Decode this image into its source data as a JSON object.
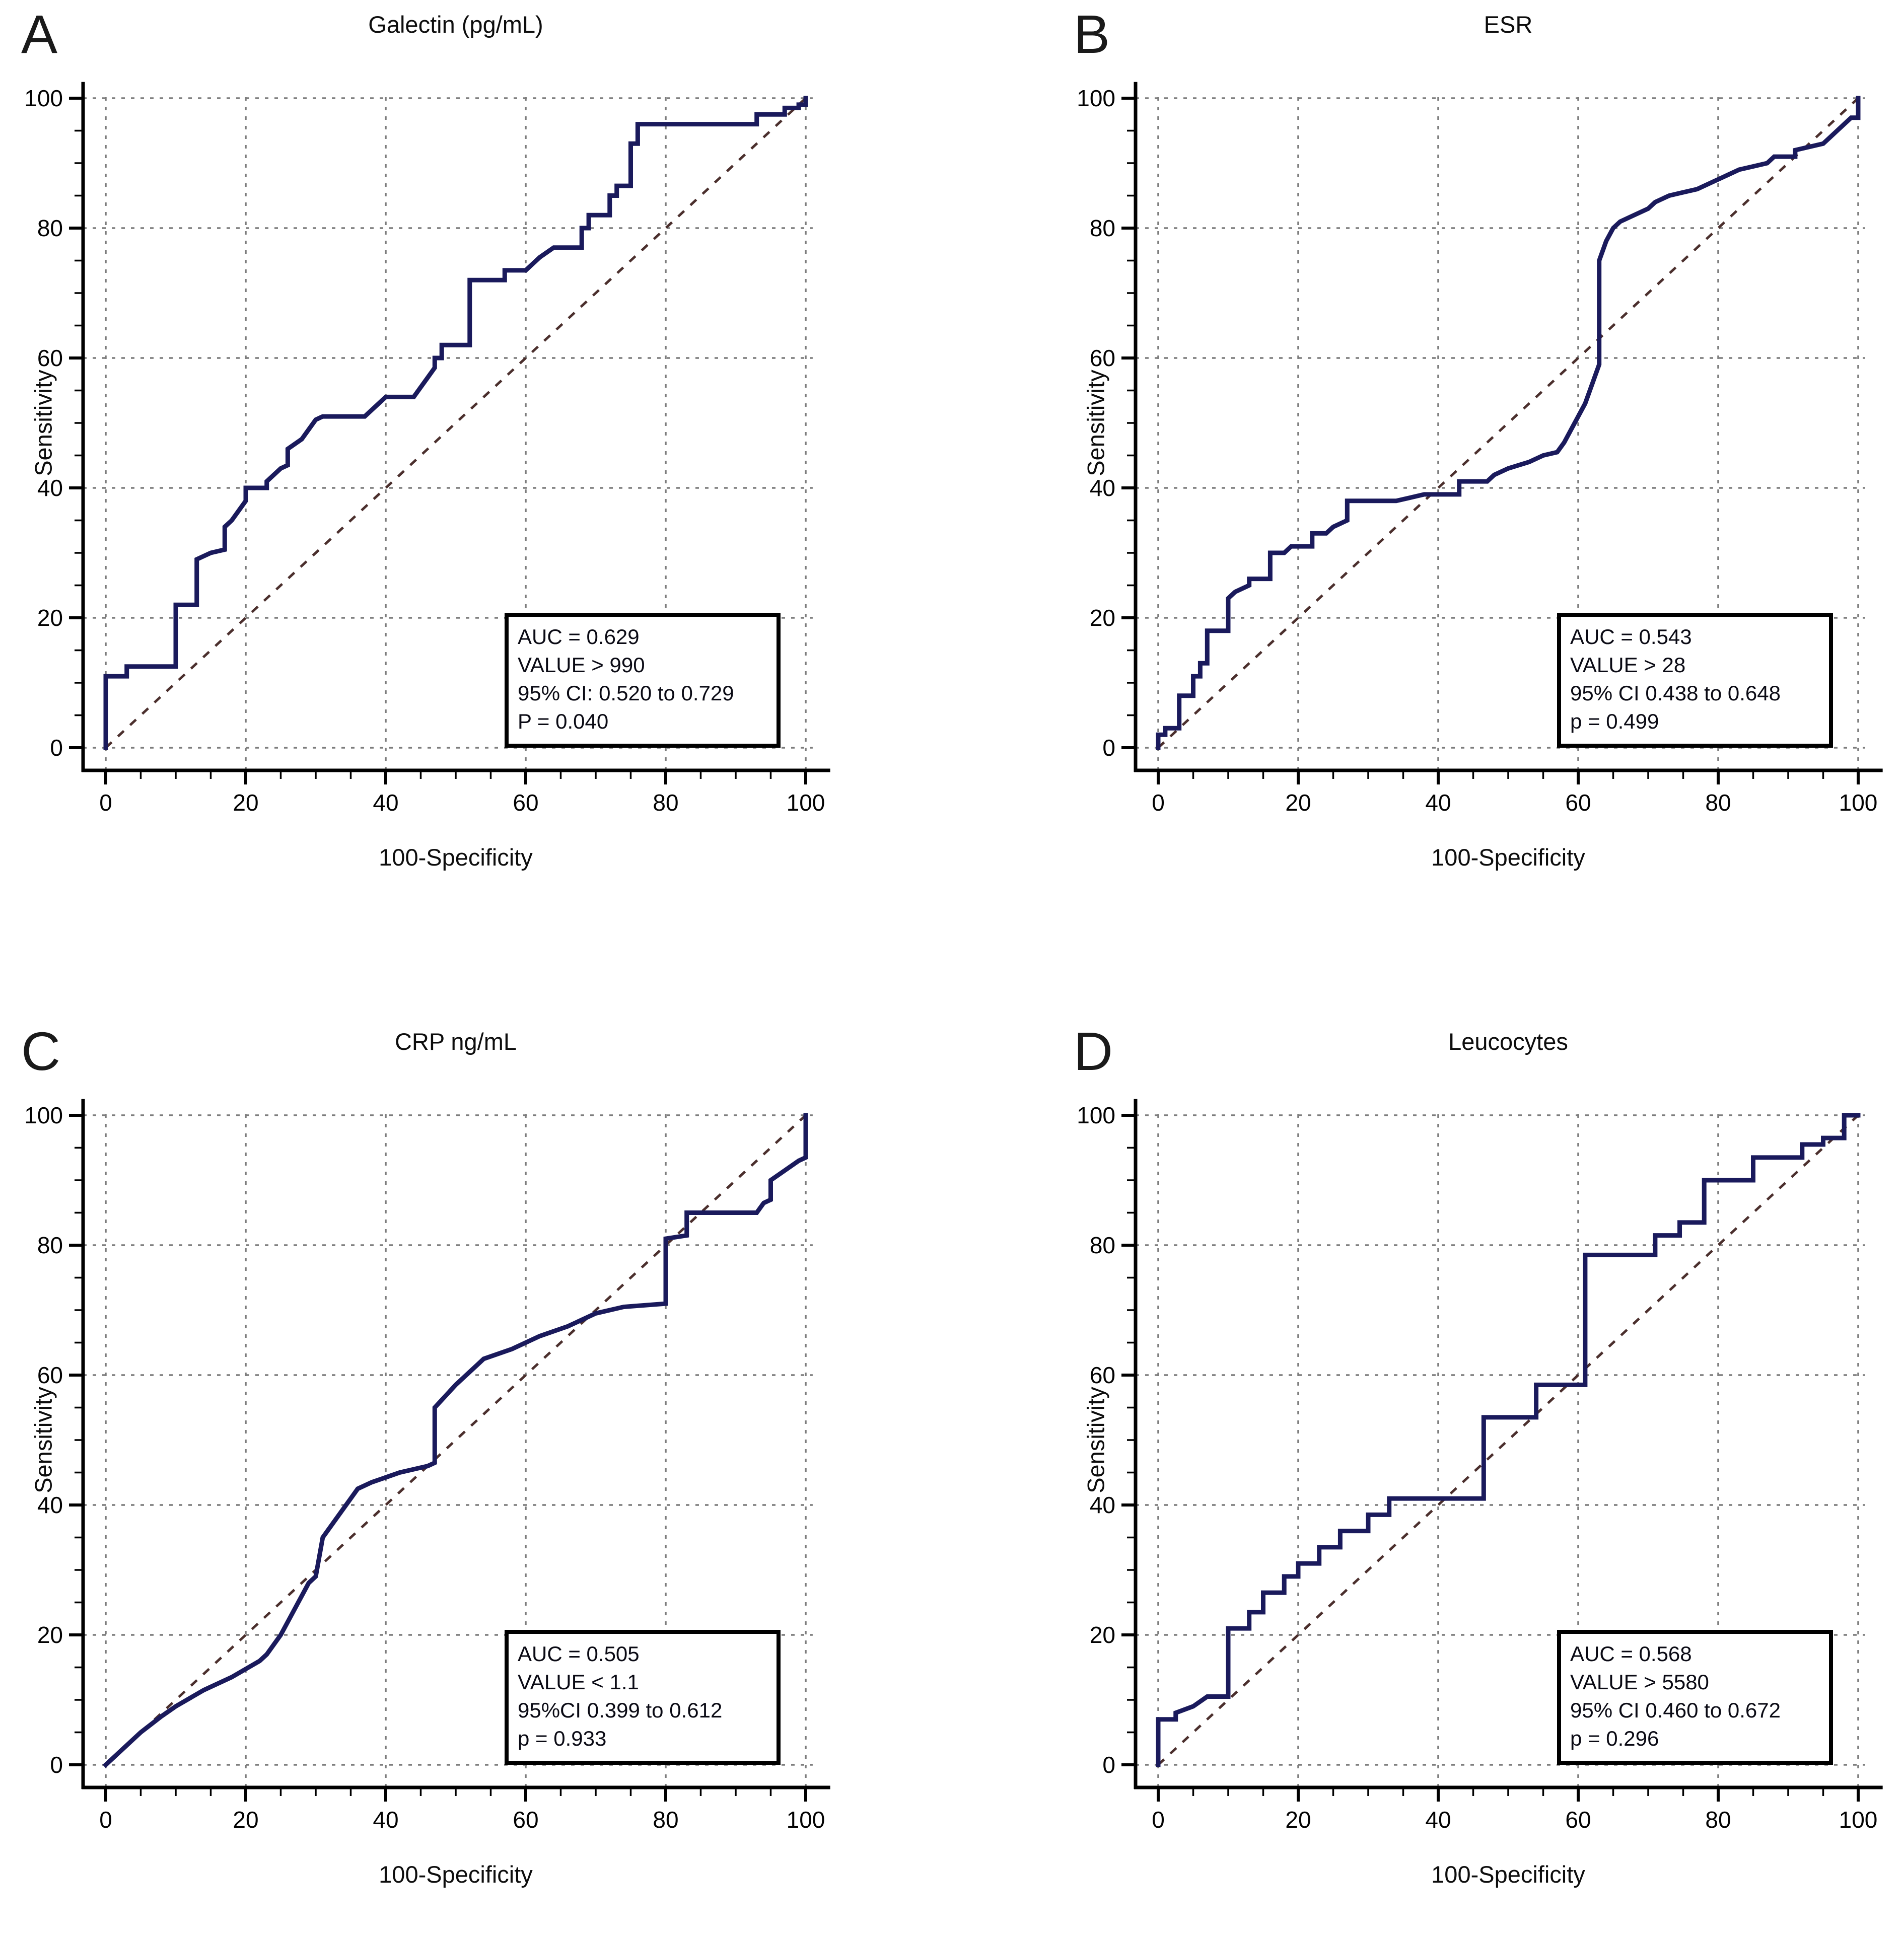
{
  "figure": {
    "background": "#ffffff",
    "description_labels": {
      "xlabel": "100-Specificity",
      "ylabel": "Sensitivity"
    }
  },
  "colors": {
    "roc_curve": "#1a1a5c",
    "reference_diagonal": "#4b2f2d",
    "grid": "#7d7d7d",
    "axis": "#000000",
    "annotation_border": "#000000",
    "background": "#ffffff"
  },
  "chart_data": [
    {
      "type": "line",
      "letter": "A",
      "title": "Galectin (pg/mL)",
      "xlabel": "100-Specificity",
      "ylabel": "Sensitivity",
      "xlim": [
        0,
        100
      ],
      "ylim": [
        0,
        100
      ],
      "ticks": [
        0,
        20,
        40,
        60,
        80,
        100
      ],
      "grid": "dashed",
      "legend_position": "none",
      "annotation": [
        "AUC = 0.629",
        "VALUE  > 990",
        "95% CI: 0.520 to 0.729",
        "P = 0.040"
      ],
      "series": [
        {
          "name": "ROC curve",
          "style": "solid",
          "points": [
            [
              0,
              0
            ],
            [
              0,
              11
            ],
            [
              3,
              11
            ],
            [
              3,
              12.5
            ],
            [
              10,
              12.5
            ],
            [
              10,
              22
            ],
            [
              13,
              22
            ],
            [
              13,
              29
            ],
            [
              14,
              29.5
            ],
            [
              15,
              30
            ],
            [
              17,
              30.5
            ],
            [
              17,
              34
            ],
            [
              18,
              35
            ],
            [
              19,
              36.5
            ],
            [
              20,
              38
            ],
            [
              20,
              40
            ],
            [
              23,
              40
            ],
            [
              23,
              41
            ],
            [
              24,
              42
            ],
            [
              25,
              43
            ],
            [
              26,
              43.5
            ],
            [
              26,
              46
            ],
            [
              28,
              47.5
            ],
            [
              29,
              49
            ],
            [
              30,
              50.5
            ],
            [
              31,
              51
            ],
            [
              37,
              51
            ],
            [
              38,
              52
            ],
            [
              39,
              53
            ],
            [
              40,
              54
            ],
            [
              44,
              54
            ],
            [
              45,
              55.5
            ],
            [
              46,
              57
            ],
            [
              47,
              58.5
            ],
            [
              47,
              60
            ],
            [
              48,
              60
            ],
            [
              48,
              62
            ],
            [
              52,
              62
            ],
            [
              52,
              72
            ],
            [
              57,
              72
            ],
            [
              57,
              73.5
            ],
            [
              60,
              73.5
            ],
            [
              62,
              75.5
            ],
            [
              64,
              77
            ],
            [
              68,
              77
            ],
            [
              68,
              80
            ],
            [
              69,
              80
            ],
            [
              69,
              82
            ],
            [
              72,
              82
            ],
            [
              72,
              85
            ],
            [
              73,
              85
            ],
            [
              73,
              86.5
            ],
            [
              75,
              86.5
            ],
            [
              75,
              93
            ],
            [
              76,
              93
            ],
            [
              76,
              96
            ],
            [
              93,
              96
            ],
            [
              93,
              97.5
            ],
            [
              97,
              97.5
            ],
            [
              97,
              98.5
            ],
            [
              99,
              98.5
            ],
            [
              99,
              99
            ],
            [
              100,
              99
            ],
            [
              100,
              100
            ]
          ]
        },
        {
          "name": "reference diagonal",
          "style": "dashed",
          "points": [
            [
              0,
              0
            ],
            [
              100,
              100
            ]
          ]
        }
      ]
    },
    {
      "type": "line",
      "letter": "B",
      "title": "ESR",
      "xlabel": "100-Specificity",
      "ylabel": "Sensitivity",
      "xlim": [
        0,
        100
      ],
      "ylim": [
        0,
        100
      ],
      "ticks": [
        0,
        20,
        40,
        60,
        80,
        100
      ],
      "grid": "dashed",
      "legend_position": "none",
      "annotation": [
        "AUC = 0.543",
        "VALUE > 28",
        "95% CI 0.438 to 0.648",
        "p = 0.499"
      ],
      "series": [
        {
          "name": "ROC curve",
          "style": "solid",
          "points": [
            [
              0,
              0
            ],
            [
              0,
              2
            ],
            [
              1,
              2
            ],
            [
              1,
              3
            ],
            [
              3,
              3
            ],
            [
              3,
              8
            ],
            [
              5,
              8
            ],
            [
              5,
              11
            ],
            [
              6,
              11
            ],
            [
              6,
              13
            ],
            [
              7,
              13
            ],
            [
              7,
              18
            ],
            [
              10,
              18
            ],
            [
              10,
              23
            ],
            [
              11,
              24
            ],
            [
              13,
              25
            ],
            [
              13,
              26
            ],
            [
              16,
              26
            ],
            [
              16,
              30
            ],
            [
              18,
              30
            ],
            [
              19,
              31
            ],
            [
              22,
              31
            ],
            [
              22,
              33
            ],
            [
              24,
              33
            ],
            [
              25,
              34
            ],
            [
              27,
              35
            ],
            [
              27,
              38
            ],
            [
              34,
              38
            ],
            [
              36,
              38.5
            ],
            [
              38,
              39
            ],
            [
              43,
              39
            ],
            [
              43,
              41
            ],
            [
              47,
              41
            ],
            [
              48,
              42
            ],
            [
              50,
              43
            ],
            [
              53,
              44
            ],
            [
              55,
              45
            ],
            [
              57,
              45.5
            ],
            [
              58,
              47
            ],
            [
              59,
              49
            ],
            [
              60,
              51
            ],
            [
              61,
              53
            ],
            [
              62,
              56
            ],
            [
              63,
              59
            ],
            [
              63,
              75
            ],
            [
              64,
              78
            ],
            [
              65,
              80
            ],
            [
              66,
              81
            ],
            [
              68,
              82
            ],
            [
              70,
              83
            ],
            [
              71,
              84
            ],
            [
              73,
              85
            ],
            [
              75,
              85.5
            ],
            [
              77,
              86
            ],
            [
              79,
              87
            ],
            [
              81,
              88
            ],
            [
              83,
              89
            ],
            [
              85,
              89.5
            ],
            [
              87,
              90
            ],
            [
              88,
              91
            ],
            [
              91,
              91
            ],
            [
              91,
              92
            ],
            [
              93,
              92.5
            ],
            [
              95,
              93
            ],
            [
              96,
              94
            ],
            [
              97,
              95
            ],
            [
              98,
              96
            ],
            [
              99,
              97
            ],
            [
              100,
              97
            ],
            [
              100,
              100
            ]
          ]
        },
        {
          "name": "reference diagonal",
          "style": "dashed",
          "points": [
            [
              0,
              0
            ],
            [
              100,
              100
            ]
          ]
        }
      ]
    },
    {
      "type": "line",
      "letter": "C",
      "title": "CRP ng/mL",
      "xlabel": "100-Specificity",
      "ylabel": "Sensitivity",
      "xlim": [
        0,
        100
      ],
      "ylim": [
        0,
        100
      ],
      "ticks": [
        0,
        20,
        40,
        60,
        80,
        100
      ],
      "grid": "dashed",
      "legend_position": "none",
      "annotation": [
        "AUC = 0.505",
        "VALUE < 1.1",
        "95%CI 0.399 to 0.612",
        "p = 0.933"
      ],
      "series": [
        {
          "name": "ROC curve",
          "style": "solid",
          "points": [
            [
              0,
              0
            ],
            [
              2,
              2
            ],
            [
              5,
              5
            ],
            [
              8,
              7.5
            ],
            [
              10,
              9
            ],
            [
              14,
              11.5
            ],
            [
              18,
              13.5
            ],
            [
              22,
              16
            ],
            [
              23,
              17
            ],
            [
              25,
              20
            ],
            [
              27,
              24
            ],
            [
              29,
              28
            ],
            [
              30,
              29
            ],
            [
              31,
              35
            ],
            [
              33,
              38
            ],
            [
              35,
              41
            ],
            [
              36,
              42.5
            ],
            [
              38,
              43.5
            ],
            [
              42,
              45
            ],
            [
              46,
              46
            ],
            [
              47,
              46.5
            ],
            [
              47,
              55
            ],
            [
              50,
              58.5
            ],
            [
              53,
              61.5
            ],
            [
              54,
              62.5
            ],
            [
              58,
              64
            ],
            [
              62,
              66
            ],
            [
              66,
              67.5
            ],
            [
              70,
              69.5
            ],
            [
              74,
              70.5
            ],
            [
              80,
              71
            ],
            [
              80,
              81
            ],
            [
              83,
              81.5
            ],
            [
              83,
              85
            ],
            [
              93,
              85
            ],
            [
              94,
              86.5
            ],
            [
              95,
              87
            ],
            [
              95,
              90
            ],
            [
              97,
              91.5
            ],
            [
              99,
              93
            ],
            [
              100,
              93.5
            ],
            [
              100,
              100
            ]
          ]
        },
        {
          "name": "reference diagonal",
          "style": "dashed",
          "points": [
            [
              0,
              0
            ],
            [
              100,
              100
            ]
          ]
        }
      ]
    },
    {
      "type": "line",
      "letter": "D",
      "title": "Leucocytes",
      "xlabel": "100-Specificity",
      "ylabel": "Sensitivity",
      "xlim": [
        0,
        100
      ],
      "ylim": [
        0,
        100
      ],
      "ticks": [
        0,
        20,
        40,
        60,
        80,
        100
      ],
      "grid": "dashed",
      "legend_position": "none",
      "annotation": [
        "AUC = 0.568",
        "VALUE > 5580",
        "95% CI 0.460 to 0.672",
        "p = 0.296"
      ],
      "series": [
        {
          "name": "ROC curve",
          "style": "solid",
          "points": [
            [
              0,
              0
            ],
            [
              0,
              7
            ],
            [
              2.5,
              7
            ],
            [
              2.5,
              8
            ],
            [
              5,
              9
            ],
            [
              7,
              10.5
            ],
            [
              10,
              10.5
            ],
            [
              10,
              21
            ],
            [
              13,
              21
            ],
            [
              13,
              23.5
            ],
            [
              15,
              23.5
            ],
            [
              15,
              26.5
            ],
            [
              18,
              26.5
            ],
            [
              18,
              29
            ],
            [
              20,
              29
            ],
            [
              20,
              31
            ],
            [
              23,
              31
            ],
            [
              23,
              33.5
            ],
            [
              26,
              33.5
            ],
            [
              26,
              36
            ],
            [
              30,
              36
            ],
            [
              30,
              38.5
            ],
            [
              33,
              38.5
            ],
            [
              33,
              41
            ],
            [
              46.5,
              41
            ],
            [
              46.5,
              53.5
            ],
            [
              54,
              53.5
            ],
            [
              54,
              58.5
            ],
            [
              61,
              58.5
            ],
            [
              61,
              78.5
            ],
            [
              71,
              78.5
            ],
            [
              71,
              81.5
            ],
            [
              74.5,
              81.5
            ],
            [
              74.5,
              83.5
            ],
            [
              78,
              83.5
            ],
            [
              78,
              90
            ],
            [
              85,
              90
            ],
            [
              85,
              93.5
            ],
            [
              92,
              93.5
            ],
            [
              92,
              95.5
            ],
            [
              95,
              95.5
            ],
            [
              95,
              96.5
            ],
            [
              98,
              96.5
            ],
            [
              98,
              100
            ],
            [
              100,
              100
            ]
          ]
        },
        {
          "name": "reference diagonal",
          "style": "dashed",
          "points": [
            [
              0,
              0
            ],
            [
              100,
              100
            ]
          ]
        }
      ]
    }
  ]
}
